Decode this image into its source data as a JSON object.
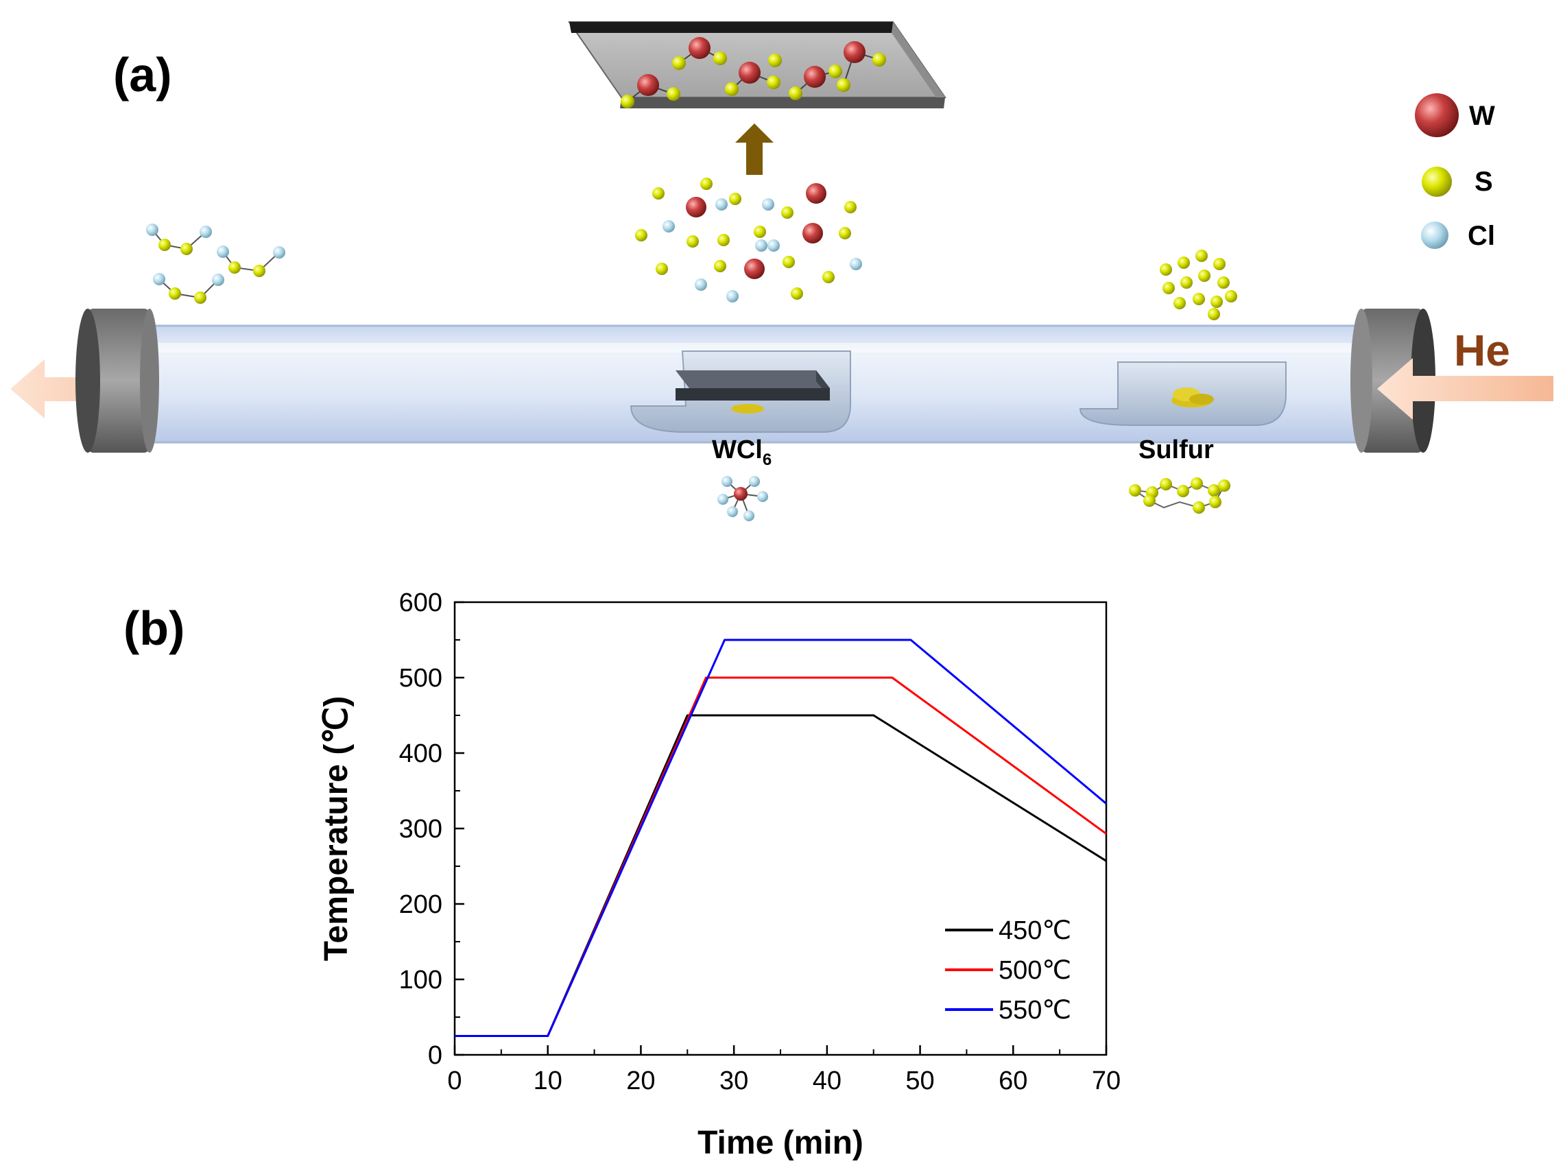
{
  "panel_a": {
    "label": "(a)",
    "legend": [
      {
        "symbol": "W",
        "color": "#b83a3a",
        "size": "large"
      },
      {
        "symbol": "S",
        "color": "#d8e400",
        "size": "medium"
      },
      {
        "symbol": "Cl",
        "color": "#a9d6e8",
        "size": "medium"
      }
    ],
    "gas_label": "He",
    "precursor_1": {
      "label_main": "WCl",
      "label_sub": "6"
    },
    "precursor_2": {
      "label": "Sulfur"
    }
  },
  "panel_b": {
    "label": "(b)"
  },
  "chart_data": {
    "type": "line",
    "xlabel": "Time (min)",
    "ylabel": "Temperature (℃)",
    "xlim": [
      0,
      70
    ],
    "ylim": [
      0,
      600
    ],
    "xticks": [
      0,
      10,
      20,
      30,
      40,
      50,
      60,
      70
    ],
    "yticks": [
      0,
      100,
      200,
      300,
      400,
      500,
      600
    ],
    "legend_position": "bottom-right",
    "series": [
      {
        "name": "450℃",
        "color": "#000000",
        "x": [
          0,
          10,
          25,
          45,
          70
        ],
        "y": [
          25,
          25,
          450,
          450,
          257
        ]
      },
      {
        "name": "500℃",
        "color": "#ff0000",
        "x": [
          0,
          10,
          27,
          47,
          70
        ],
        "y": [
          25,
          25,
          500,
          500,
          293
        ]
      },
      {
        "name": "550℃",
        "color": "#0000ff",
        "x": [
          0,
          10,
          29,
          49,
          70
        ],
        "y": [
          25,
          25,
          550,
          550,
          333
        ]
      }
    ]
  }
}
